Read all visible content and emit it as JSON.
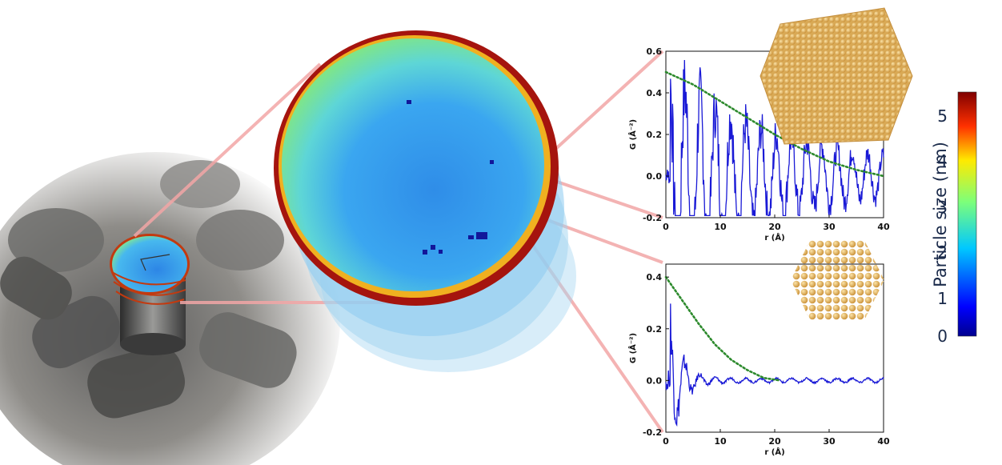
{
  "colorbar": {
    "label": "Particle size (nm)",
    "ticks": [
      "0",
      "1",
      "2",
      "3",
      "4",
      "5"
    ]
  },
  "chart_data": [
    {
      "type": "line",
      "title": "",
      "xlabel": "r (Å)",
      "ylabel": "G (Å⁻²)",
      "xlim": [
        0,
        40
      ],
      "ylim": [
        -0.2,
        0.6
      ],
      "xticks": [
        "0",
        "10",
        "20",
        "30",
        "40"
      ],
      "yticks": [
        "-0.2",
        "0.0",
        "0.2",
        "0.4",
        "0.6"
      ],
      "series": [
        {
          "style": "solid",
          "color": "#1a1ad6",
          "amplitude": [
            0.45,
            0.0,
            0.1
          ],
          "decay_r": 90,
          "period": 2.8
        },
        {
          "style": "dotted",
          "color": "#2d8a2d",
          "x": [
            0,
            5,
            10,
            15,
            20,
            25,
            30,
            35,
            40
          ],
          "y": [
            0.5,
            0.44,
            0.36,
            0.28,
            0.2,
            0.13,
            0.07,
            0.03,
            0.0
          ]
        }
      ]
    },
    {
      "type": "line",
      "title": "",
      "xlabel": "r (Å)",
      "ylabel": "G (Å⁻²)",
      "xlim": [
        0,
        40
      ],
      "ylim": [
        -0.2,
        0.45
      ],
      "xticks": [
        "0",
        "10",
        "20",
        "30",
        "40"
      ],
      "yticks": [
        "-0.2",
        "0.0",
        "0.2",
        "0.4"
      ],
      "series": [
        {
          "style": "solid",
          "color": "#1a1ad6",
          "amplitude": [
            0.36,
            0.0,
            0.02
          ],
          "decay_r": 22,
          "period": 2.8
        },
        {
          "style": "dotted",
          "color": "#2d8a2d",
          "x": [
            0,
            3,
            6,
            9,
            12,
            15,
            18,
            21
          ],
          "y": [
            0.4,
            0.31,
            0.22,
            0.14,
            0.08,
            0.04,
            0.01,
            0.0
          ]
        }
      ]
    }
  ]
}
